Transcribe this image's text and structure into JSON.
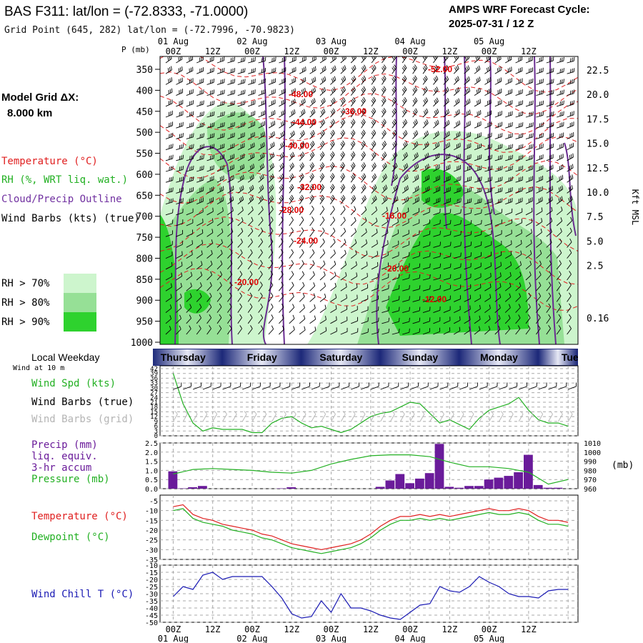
{
  "header": {
    "station": "BAS F311:  lat/lon = (-72.8333, -71.0000)",
    "grid_point": "Grid Point (645, 282) lat/lon = (-72.7996, -70.9823)",
    "cycle_title": "AMPS WRF Forecast Cycle:",
    "cycle_time": "2025-07-31 / 12  Z"
  },
  "left_panel": {
    "model_grid": "Model Grid ΔX:",
    "model_dx": "8.000 km",
    "labels": [
      {
        "text": "Temperature (°C)",
        "color": "#e02020"
      },
      {
        "text": "RH (%, WRT liq. wat.)",
        "color": "#22b022"
      },
      {
        "text": "Cloud/Precip Outline",
        "color": "#7030a0"
      },
      {
        "text": "Wind Barbs (kts) (true)",
        "color": "#000000"
      }
    ],
    "rh_legend": [
      {
        "text": "RH > 70%",
        "color": "#cdf5cd"
      },
      {
        "text": "RH > 80%",
        "color": "#96e096"
      },
      {
        "text": "RH > 90%",
        "color": "#2ed22e"
      }
    ]
  },
  "chart_data": [
    {
      "type": "heatmap",
      "name": "cross-section",
      "pressure_axis_label": "P (mb)",
      "pressure_ticks": [
        350,
        400,
        450,
        500,
        550,
        600,
        650,
        700,
        750,
        800,
        850,
        900,
        950,
        1000
      ],
      "height_axis_label": "Kft MSL",
      "height_ticks": [
        "22.5",
        "20.0",
        "17.5",
        "15.0",
        "12.5",
        "10.0",
        "7.5",
        "5.0",
        "2.5",
        "0.16"
      ],
      "time_ticks": [
        "00Z",
        "12Z",
        "00Z",
        "12Z",
        "00Z",
        "12Z",
        "00Z",
        "12Z",
        "00Z",
        "12Z"
      ],
      "date_ticks": [
        "01 Aug",
        "02 Aug",
        "03 Aug",
        "04 Aug",
        "05 Aug"
      ],
      "temperature_contour_labels": [
        "-52.00",
        "-48.00",
        "-36.00",
        "-44.00",
        "-40.00",
        "-32.00",
        "-28.00",
        "-24.00",
        "-20.00",
        "-16.00",
        "-20.00",
        "-12.00"
      ]
    },
    {
      "type": "line",
      "name": "wind speed",
      "left_title": "Local Weekday",
      "left_subtitle": "Wind at 10 m",
      "weekdays": [
        "Thursday",
        "Friday",
        "Saturday",
        "Sunday",
        "Monday",
        "Tuesday"
      ],
      "legend": [
        {
          "text": "Wind Spd (kts)",
          "color": "#22b022"
        },
        {
          "text": "Wind Barbs (true)",
          "color": "#000000"
        },
        {
          "text": "Wind Barbs (grid)",
          "color": "#b4b4b4"
        }
      ],
      "y_ticks": [
        0,
        3,
        6,
        9,
        12,
        15,
        18,
        21,
        24,
        27,
        30,
        33,
        36,
        39,
        42
      ],
      "ylim": [
        0,
        42
      ],
      "x_hours": [
        0,
        3,
        6,
        9,
        12,
        15,
        18,
        21,
        24,
        27,
        30,
        33,
        36,
        39,
        42,
        45,
        48,
        51,
        54,
        57,
        60,
        63,
        66,
        69,
        72,
        75,
        78,
        81,
        84,
        87,
        90,
        93,
        96,
        99,
        102,
        105,
        108,
        111,
        114,
        117,
        120
      ],
      "values": [
        39,
        20,
        8,
        3,
        5,
        4,
        4,
        4,
        2,
        2,
        8,
        11,
        12,
        8,
        5,
        6,
        4,
        2,
        4,
        8,
        12,
        14,
        15,
        18,
        21,
        20,
        14,
        8,
        10,
        7,
        4,
        11,
        16,
        18,
        20,
        24,
        16,
        10,
        8,
        8,
        6
      ]
    },
    {
      "type": "bar",
      "name": "precipitation and pressure",
      "legend": [
        {
          "text": "Precip (mm)",
          "color": "#6a1b9a"
        },
        {
          "text": "liq. equiv.",
          "color": "#6a1b9a"
        },
        {
          "text": "3-hr accum",
          "color": "#6a1b9a"
        },
        {
          "text": "Pressure (mb)",
          "color": "#22b022"
        }
      ],
      "y_ticks": [
        "0.0",
        "0.5",
        "1.0",
        "1.5",
        "2.0",
        "2.5"
      ],
      "ylim": [
        0,
        2.5
      ],
      "right_ticks": [
        "1010",
        "1000",
        "990",
        "980",
        "970",
        "960"
      ],
      "right_label": "(mb)",
      "right_ylim": [
        960,
        1010
      ],
      "precip_hours": [
        0,
        3,
        6,
        9,
        12,
        15,
        18,
        21,
        24,
        27,
        30,
        33,
        36,
        39,
        42,
        45,
        48,
        51,
        54,
        57,
        60,
        63,
        66,
        69,
        72,
        75,
        78,
        81,
        84,
        87,
        90,
        93,
        96,
        99,
        102,
        105,
        108,
        111,
        114,
        117
      ],
      "precip_values": [
        0.95,
        0.02,
        0.08,
        0.15,
        0,
        0,
        0,
        0,
        0,
        0,
        0,
        0.02,
        0.08,
        0,
        0,
        0,
        0,
        0,
        0,
        0,
        0,
        0.1,
        0.45,
        0.8,
        0.3,
        0.55,
        0.85,
        2.45,
        0.1,
        0.05,
        0.15,
        0.15,
        0.5,
        0.6,
        0.7,
        0.9,
        1.85,
        0.2,
        0.05,
        0.05
      ],
      "pressure_hours": [
        0,
        6,
        12,
        18,
        24,
        30,
        36,
        42,
        48,
        54,
        60,
        66,
        72,
        78,
        84,
        90,
        96,
        102,
        108,
        114,
        120
      ],
      "pressure_values": [
        976,
        981,
        982,
        981,
        980,
        978,
        977,
        980,
        987,
        992,
        996,
        997,
        997,
        995,
        989,
        984,
        984,
        982,
        978,
        965,
        970
      ]
    },
    {
      "type": "line",
      "name": "temperature and dewpoint",
      "legend": [
        {
          "text": "Temperature (°C)",
          "color": "#e02020"
        },
        {
          "text": "Dewpoint (°C)",
          "color": "#22b022"
        }
      ],
      "y_ticks": [
        -5,
        -10,
        -15,
        -20,
        -25,
        -30,
        -35
      ],
      "ylim": [
        -35,
        -5
      ],
      "x_hours": [
        0,
        3,
        6,
        9,
        12,
        15,
        18,
        21,
        24,
        27,
        30,
        33,
        36,
        39,
        42,
        45,
        48,
        51,
        54,
        57,
        60,
        63,
        66,
        69,
        72,
        75,
        78,
        81,
        84,
        87,
        90,
        93,
        96,
        99,
        102,
        105,
        108,
        111,
        114,
        117,
        120
      ],
      "series": [
        {
          "name": "Temperature",
          "color": "#e02020",
          "values": [
            -8,
            -7,
            -12,
            -14,
            -15,
            -17,
            -18,
            -19,
            -20,
            -22,
            -23,
            -25,
            -27,
            -28,
            -29,
            -30,
            -29,
            -28,
            -27,
            -25,
            -22,
            -18,
            -15,
            -13,
            -13,
            -12,
            -13,
            -12,
            -13,
            -12,
            -11,
            -10,
            -9,
            -10,
            -10,
            -9,
            -10,
            -13,
            -15,
            -15,
            -16
          ]
        },
        {
          "name": "Dewpoint",
          "color": "#22b022",
          "values": [
            -10,
            -9,
            -14,
            -16,
            -17,
            -18,
            -20,
            -21,
            -22,
            -24,
            -25,
            -27,
            -29,
            -30,
            -31,
            -32,
            -31,
            -30,
            -29,
            -27,
            -24,
            -20,
            -17,
            -15,
            -15,
            -14,
            -15,
            -14,
            -15,
            -14,
            -13,
            -12,
            -11,
            -12,
            -12,
            -11,
            -12,
            -15,
            -17,
            -17,
            -18
          ]
        }
      ]
    },
    {
      "type": "line",
      "name": "wind chill",
      "legend": [
        {
          "text": "Wind Chill T (°C)",
          "color": "#1a1ab4"
        }
      ],
      "y_ticks": [
        -10,
        -15,
        -20,
        -25,
        -30,
        -35,
        -40,
        -45,
        -50
      ],
      "ylim": [
        -50,
        -10
      ],
      "x_hours": [
        0,
        3,
        6,
        9,
        12,
        15,
        18,
        21,
        24,
        27,
        30,
        33,
        36,
        39,
        42,
        45,
        48,
        51,
        54,
        57,
        60,
        63,
        66,
        69,
        72,
        75,
        78,
        81,
        84,
        87,
        90,
        93,
        96,
        99,
        102,
        105,
        108,
        111,
        114,
        117,
        120
      ],
      "values": [
        -32,
        -25,
        -27,
        -17,
        -15,
        -20,
        -18,
        -18,
        -18,
        -18,
        -25,
        -33,
        -44,
        -47,
        -46,
        -35,
        -43,
        -30,
        -40,
        -40,
        -42,
        -45,
        -47,
        -48,
        -43,
        -38,
        -37,
        -25,
        -28,
        -29,
        -25,
        -18,
        -22,
        -25,
        -30,
        -32,
        -32,
        -33,
        -28,
        -27,
        -27
      ]
    }
  ]
}
